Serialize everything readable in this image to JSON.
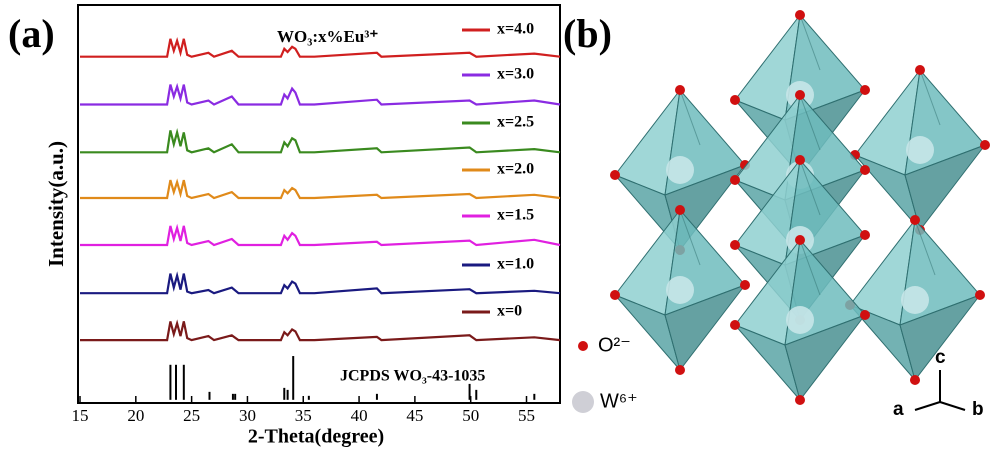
{
  "chart_data": {
    "type": "line",
    "panel_label": "(a)",
    "annotation": "WO₃:x%Eu³⁺",
    "xlabel": "2-Theta(degree)",
    "ylabel": "Intensity(a.u.)",
    "xlim": [
      15,
      58
    ],
    "xticks": [
      15,
      20,
      25,
      30,
      35,
      40,
      45,
      50,
      55
    ],
    "ylim": [
      0,
      100
    ],
    "x": [
      15,
      20,
      22.8,
      23.1,
      23.4,
      23.7,
      24.0,
      24.3,
      24.6,
      25.0,
      26.5,
      27,
      28.6,
      29.2,
      33.0,
      33.3,
      33.6,
      34.0,
      34.3,
      34.7,
      36,
      41.6,
      42,
      49.9,
      50.5,
      55.7,
      58
    ],
    "series": [
      {
        "name": "x=4.0",
        "color": "#d01f1f",
        "values": [
          87,
          87,
          87,
          91.5,
          88.5,
          91,
          88,
          91.5,
          87.5,
          87,
          88,
          87,
          88.5,
          87,
          87,
          89,
          88.2,
          89.5,
          89,
          87,
          87,
          88,
          87,
          88,
          87,
          87.8,
          87
        ]
      },
      {
        "name": "x=3.0",
        "color": "#8a2be2",
        "values": [
          75,
          75,
          75,
          80,
          77,
          79.5,
          76.5,
          80,
          75.5,
          75,
          76,
          75,
          77,
          75,
          75,
          77.5,
          76.5,
          79,
          78,
          75,
          75,
          76.2,
          75,
          76,
          75,
          76,
          75
        ]
      },
      {
        "name": "x=2.5",
        "color": "#3a8a1f",
        "values": [
          63,
          63,
          63,
          68.5,
          65,
          68,
          64.5,
          68,
          63.5,
          63,
          64,
          63,
          65,
          63,
          63,
          65.5,
          64.5,
          66.5,
          66,
          63,
          63,
          64,
          63,
          64.2,
          63,
          63.8,
          63
        ]
      },
      {
        "name": "x=2.0",
        "color": "#e08a1a",
        "values": [
          51.5,
          51.5,
          51.5,
          56,
          53,
          55.5,
          52.5,
          56,
          52,
          51.5,
          52.5,
          51.5,
          53,
          51.5,
          51.5,
          53.5,
          52.7,
          54,
          53.5,
          51.5,
          51.5,
          52.3,
          51.5,
          52.5,
          51.5,
          52.3,
          51.5
        ]
      },
      {
        "name": "x=1.5",
        "color": "#e020e0",
        "values": [
          39.7,
          39.7,
          39.7,
          44.5,
          41.2,
          44,
          40.7,
          44.5,
          40.2,
          39.7,
          40.7,
          39.7,
          41.2,
          39.7,
          39.7,
          42,
          41,
          42.7,
          42,
          39.7,
          39.7,
          40.5,
          39.7,
          40.8,
          39.7,
          41,
          39.7
        ]
      },
      {
        "name": "x=1.0",
        "color": "#1a1a80",
        "values": [
          27.6,
          27.6,
          27.6,
          32.5,
          29,
          32,
          28.5,
          32.5,
          28,
          27.6,
          28.4,
          27.6,
          29,
          27.6,
          27.6,
          29.6,
          28.8,
          30.5,
          30,
          27.6,
          27.6,
          28.8,
          27.6,
          28.6,
          27.6,
          28.2,
          27.6
        ]
      },
      {
        "name": "x=0",
        "color": "#7a1a1a",
        "values": [
          15.8,
          15.8,
          15.8,
          20.5,
          17.3,
          20,
          16.8,
          20.5,
          16.3,
          15.8,
          16.8,
          15.8,
          17,
          15.8,
          15.8,
          17.8,
          17,
          18.5,
          18,
          15.8,
          15.8,
          16.6,
          15.8,
          17,
          15.8,
          16.5,
          15.8
        ]
      }
    ],
    "reference": {
      "name": "JCPDS WO₃-43-1035",
      "color": "#000000",
      "base": 0.8,
      "x": [
        23.1,
        23.6,
        24.3,
        26.6,
        28.7,
        28.9,
        33.3,
        33.6,
        34.1,
        35.5,
        41.6,
        49.9,
        50.5,
        55.7
      ],
      "values": [
        8.8,
        8.8,
        8.8,
        2,
        1.5,
        1.5,
        3,
        2.5,
        11,
        1,
        1.5,
        4,
        2.5,
        1.5
      ]
    }
  },
  "structure": {
    "panel_label": "(b)",
    "legend": [
      "O²⁻",
      "W⁶⁺"
    ],
    "axes": [
      "c",
      "a",
      "b"
    ]
  }
}
